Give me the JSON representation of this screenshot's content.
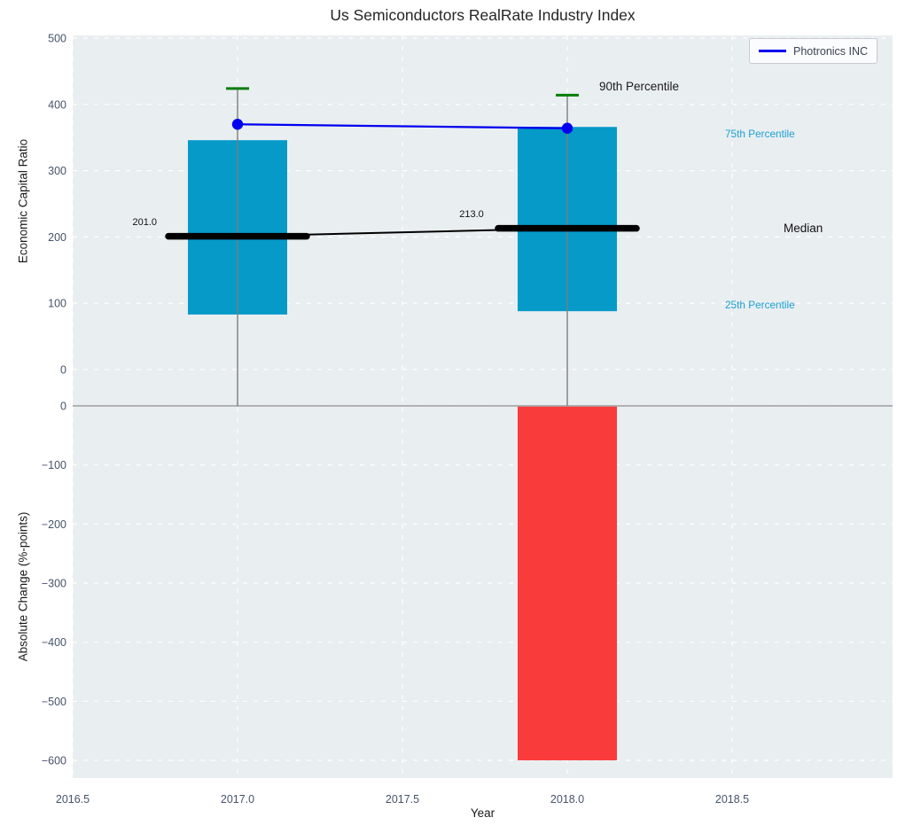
{
  "title": "Us Semiconductors RealRate Industry Index",
  "legend": {
    "items": [
      {
        "label": "Photronics INC",
        "color": "#0000ee"
      }
    ]
  },
  "axes": {
    "x": {
      "label": "Year",
      "ticks": [
        "2016.5",
        "2017.0",
        "2017.5",
        "2018.0",
        "2018.5"
      ]
    },
    "top": {
      "ylabel": "Economic Capital Ratio",
      "yticks": [
        "500",
        "400",
        "300",
        "200",
        "100",
        "0"
      ]
    },
    "bottom": {
      "ylabel": "Absolute Change (%-points)",
      "yticks": [
        "0",
        "−100",
        "−200",
        "−300",
        "−400",
        "−500",
        "−600"
      ]
    }
  },
  "annotations": {
    "p90_label": "90th Percentile",
    "p75_label": "75th Percentile",
    "median_label": "Median",
    "p25_label": "25th Percentile",
    "median_value_2017": "201.0",
    "median_value_2018": "213.0"
  },
  "colors": {
    "plot_bg": "#e9eef1",
    "grid": "#ffffff",
    "bar": "#059ac8",
    "bar_negative": "#fa3b3b",
    "company_line": "#0000ee",
    "percentile_cap": "#077d07",
    "median_line": "#000000",
    "percentile_label": "#1da1d2",
    "tick": "#46536b",
    "zero_line": "#a8a8a8",
    "whisker": "#7d7d7d"
  },
  "chart_data": [
    {
      "type": "line",
      "title": "Us Semiconductors RealRate Industry Index",
      "x": [
        2017,
        2018
      ],
      "series": [
        {
          "name": "90th Percentile",
          "values": [
            424,
            414
          ],
          "mark": "green-cap"
        },
        {
          "name": "75th Percentile",
          "values": [
            346,
            366
          ],
          "mark": "iqr-bar-top"
        },
        {
          "name": "Median",
          "values": [
            201.0,
            213.0
          ],
          "mark": "thick-black-line"
        },
        {
          "name": "25th Percentile",
          "values": [
            83,
            88
          ],
          "mark": "iqr-bar-bottom"
        },
        {
          "name": "Photronics INC",
          "values": [
            370,
            364
          ],
          "mark": "blue-line-dots"
        }
      ],
      "xlabel": "Year",
      "ylabel": "Economic Capital Ratio",
      "ylim": [
        -30,
        505
      ],
      "xlim": [
        2016.5,
        2019.0
      ],
      "grid": true,
      "legend_position": "upper right"
    },
    {
      "type": "bar",
      "x": [
        2018
      ],
      "values": [
        -600
      ],
      "xlabel": "Year",
      "ylabel": "Absolute Change (%-points)",
      "ylim": [
        -630,
        30
      ],
      "xlim": [
        2016.5,
        2019.0
      ],
      "grid": true
    }
  ]
}
